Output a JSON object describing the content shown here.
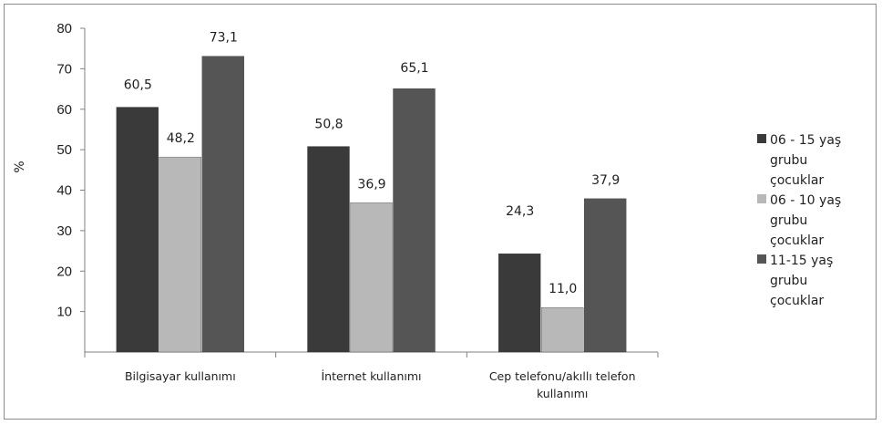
{
  "chart_data": {
    "type": "bar",
    "categories": [
      [
        "Bilgisayar kullanımı"
      ],
      [
        "İnternet kullanımı"
      ],
      [
        "Cep telefonu/akıllı telefon",
        "kullanımı"
      ]
    ],
    "series": [
      {
        "name": "06 - 15 yaş grubu çocuklar",
        "legend_lines": [
          "06 - 15 yaş",
          "grubu",
          "çocuklar"
        ],
        "values": [
          60.5,
          50.8,
          24.3
        ],
        "labels": [
          "60,5",
          "50,8",
          "24,3"
        ],
        "color": "#3a3a3a"
      },
      {
        "name": "06 - 10 yaş grubu çocuklar",
        "legend_lines": [
          "06 - 10 yaş",
          "grubu",
          "çocuklar"
        ],
        "values": [
          48.2,
          36.9,
          11.0
        ],
        "labels": [
          "48,2",
          "36,9",
          "11,0"
        ],
        "color": "#b8b8b8"
      },
      {
        "name": "11-15 yaş grubu çocuklar",
        "legend_lines": [
          "11-15 yaş",
          "grubu",
          "çocuklar"
        ],
        "values": [
          73.1,
          65.1,
          37.9
        ],
        "labels": [
          "73,1",
          "65,1",
          "37,9"
        ],
        "color": "#555555"
      }
    ],
    "yticks": [
      "10",
      "20",
      "30",
      "40",
      "50",
      "60",
      "70",
      "80"
    ],
    "ylabel": "%",
    "ylim": [
      0,
      80
    ],
    "legend_position": "right",
    "grid": false
  }
}
